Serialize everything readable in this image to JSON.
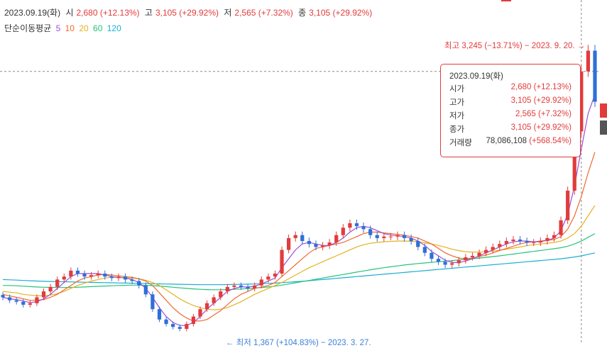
{
  "header": {
    "date": "2023.09.19(화)",
    "open_label": "시",
    "open_value": "2,680 (+12.13%)",
    "high_label": "고",
    "high_value": "3,105 (+29.92%)",
    "low_label": "저",
    "low_value": "2,565 (+7.32%)",
    "close_label": "종",
    "close_value": "3,105 (+29.92%)"
  },
  "ma_legend": {
    "title": "단순이동평균",
    "items": [
      {
        "label": "5",
        "color": "#9b4fd6"
      },
      {
        "label": "10",
        "color": "#ef6a2f"
      },
      {
        "label": "20",
        "color": "#e3b21e"
      },
      {
        "label": "60",
        "color": "#27c27a"
      },
      {
        "label": "120",
        "color": "#1aaed0"
      }
    ]
  },
  "annotations": {
    "high": "최고 3,245 (−13.71%) − 2023. 9. 20. →",
    "low": "← 최저 1,367 (+104.83%) − 2023. 3. 27."
  },
  "tooltip": {
    "date": "2023.09.19(화)",
    "rows": [
      {
        "label": "시가",
        "value": "2,680 (+12.13%)"
      },
      {
        "label": "고가",
        "value": "3,105 (+29.92%)"
      },
      {
        "label": "저가",
        "value": "2,565 (+7.32%)"
      },
      {
        "label": "종가",
        "value": "3,105 (+29.92%)"
      }
    ],
    "volume_label": "거래량",
    "volume_value": "78,086,108",
    "volume_change": "(+568.54%)"
  },
  "colors": {
    "up": "#e23b3b",
    "down": "#2f6fd6",
    "crosshair": "#888888"
  },
  "chart_data": {
    "type": "candlestick",
    "ylim": [
      1300,
      3300
    ],
    "price_series": [
      1580,
      1560,
      1550,
      1530,
      1540,
      1580,
      1620,
      1650,
      1700,
      1720,
      1760,
      1740,
      1720,
      1730,
      1740,
      1720,
      1710,
      1720,
      1700,
      1690,
      1660,
      1600,
      1500,
      1430,
      1400,
      1380,
      1367,
      1400,
      1450,
      1500,
      1540,
      1580,
      1620,
      1650,
      1660,
      1650,
      1640,
      1660,
      1700,
      1720,
      1740,
      1900,
      1980,
      2000,
      1960,
      1940,
      1920,
      1930,
      1950,
      2000,
      2050,
      2080,
      2060,
      2040,
      2000,
      1980,
      1990,
      1990,
      2000,
      1980,
      1960,
      1920,
      1880,
      1840,
      1820,
      1800,
      1810,
      1830,
      1850,
      1860,
      1880,
      1900,
      1920,
      1940,
      1960,
      1970,
      1960,
      1950,
      1950,
      1960,
      1980,
      2000,
      2100,
      2300,
      2700,
      3105,
      3245,
      2900
    ],
    "ma": [
      {
        "name": "5",
        "values": [
          1580,
          1570,
          1565,
          1555,
          1545,
          1550,
          1570,
          1600,
          1640,
          1680,
          1720,
          1740,
          1740,
          1740,
          1740,
          1730,
          1720,
          1715,
          1710,
          1700,
          1680,
          1640,
          1580,
          1510,
          1450,
          1410,
          1390,
          1390,
          1410,
          1450,
          1500,
          1540,
          1580,
          1620,
          1640,
          1650,
          1650,
          1655,
          1670,
          1690,
          1710,
          1780,
          1840,
          1900,
          1940,
          1950,
          1940,
          1930,
          1930,
          1950,
          1980,
          2020,
          2050,
          2060,
          2050,
          2030,
          2010,
          2000,
          1995,
          1990,
          1980,
          1960,
          1930,
          1890,
          1860,
          1830,
          1815,
          1815,
          1825,
          1840,
          1860,
          1880,
          1900,
          1920,
          1940,
          1955,
          1960,
          1960,
          1955,
          1955,
          1965,
          1980,
          2030,
          2140,
          2330,
          2580,
          2820,
          2950
        ]
      },
      {
        "name": "10",
        "values": [
          1600,
          1590,
          1580,
          1570,
          1560,
          1560,
          1565,
          1580,
          1600,
          1630,
          1660,
          1690,
          1710,
          1720,
          1730,
          1735,
          1730,
          1725,
          1720,
          1715,
          1705,
          1690,
          1660,
          1610,
          1560,
          1510,
          1470,
          1440,
          1420,
          1420,
          1430,
          1460,
          1490,
          1530,
          1570,
          1600,
          1620,
          1640,
          1650,
          1660,
          1680,
          1720,
          1760,
          1800,
          1840,
          1880,
          1910,
          1920,
          1930,
          1940,
          1950,
          1970,
          1990,
          2010,
          2020,
          2020,
          2015,
          2010,
          2005,
          2000,
          1990,
          1980,
          1960,
          1940,
          1910,
          1880,
          1860,
          1845,
          1840,
          1845,
          1855,
          1865,
          1880,
          1895,
          1910,
          1925,
          1940,
          1950,
          1955,
          1960,
          1965,
          1970,
          1990,
          2040,
          2130,
          2260,
          2420,
          2560
        ]
      },
      {
        "name": "20",
        "values": [
          1620,
          1615,
          1610,
          1600,
          1595,
          1590,
          1590,
          1595,
          1605,
          1620,
          1640,
          1660,
          1675,
          1690,
          1700,
          1710,
          1715,
          1715,
          1712,
          1710,
          1705,
          1695,
          1680,
          1660,
          1630,
          1600,
          1570,
          1545,
          1525,
          1510,
          1500,
          1495,
          1500,
          1510,
          1530,
          1550,
          1575,
          1600,
          1620,
          1640,
          1660,
          1680,
          1705,
          1730,
          1755,
          1780,
          1800,
          1820,
          1840,
          1860,
          1880,
          1900,
          1920,
          1935,
          1945,
          1950,
          1955,
          1958,
          1960,
          1960,
          1958,
          1955,
          1948,
          1940,
          1930,
          1918,
          1905,
          1895,
          1888,
          1885,
          1885,
          1888,
          1892,
          1898,
          1905,
          1912,
          1920,
          1928,
          1935,
          1940,
          1945,
          1950,
          1960,
          1980,
          2010,
          2060,
          2130,
          2200
        ]
      },
      {
        "name": "60",
        "values": [
          1660,
          1660,
          1658,
          1655,
          1652,
          1650,
          1648,
          1647,
          1646,
          1646,
          1647,
          1648,
          1650,
          1652,
          1654,
          1656,
          1658,
          1660,
          1661,
          1662,
          1662,
          1661,
          1659,
          1656,
          1652,
          1648,
          1644,
          1640,
          1637,
          1634,
          1632,
          1631,
          1631,
          1632,
          1634,
          1636,
          1639,
          1642,
          1646,
          1650,
          1655,
          1662,
          1670,
          1678,
          1686,
          1694,
          1702,
          1710,
          1718,
          1726,
          1734,
          1742,
          1750,
          1758,
          1766,
          1773,
          1780,
          1786,
          1792,
          1798,
          1803,
          1808,
          1812,
          1816,
          1820,
          1824,
          1828,
          1832,
          1836,
          1840,
          1845,
          1850,
          1855,
          1860,
          1866,
          1872,
          1878,
          1884,
          1890,
          1896,
          1902,
          1908,
          1915,
          1925,
          1940,
          1960,
          1985,
          2010
        ]
      },
      {
        "name": "120",
        "values": [
          1700,
          1698,
          1696,
          1694,
          1692,
          1690,
          1688,
          1687,
          1686,
          1685,
          1684,
          1683,
          1682,
          1681,
          1680,
          1679,
          1678,
          1677,
          1676,
          1675,
          1674,
          1673,
          1672,
          1671,
          1670,
          1669,
          1668,
          1667,
          1666,
          1665,
          1665,
          1665,
          1665,
          1666,
          1667,
          1668,
          1669,
          1670,
          1672,
          1674,
          1676,
          1679,
          1682,
          1685,
          1688,
          1692,
          1696,
          1700,
          1704,
          1708,
          1712,
          1716,
          1720,
          1724,
          1728,
          1732,
          1736,
          1740,
          1744,
          1748,
          1752,
          1756,
          1760,
          1764,
          1768,
          1772,
          1776,
          1780,
          1784,
          1788,
          1792,
          1796,
          1800,
          1804,
          1808,
          1812,
          1816,
          1820,
          1824,
          1828,
          1832,
          1836,
          1840,
          1846,
          1852,
          1860,
          1870,
          1880
        ]
      }
    ],
    "high": 3245,
    "low": 1367,
    "close": 3105
  }
}
